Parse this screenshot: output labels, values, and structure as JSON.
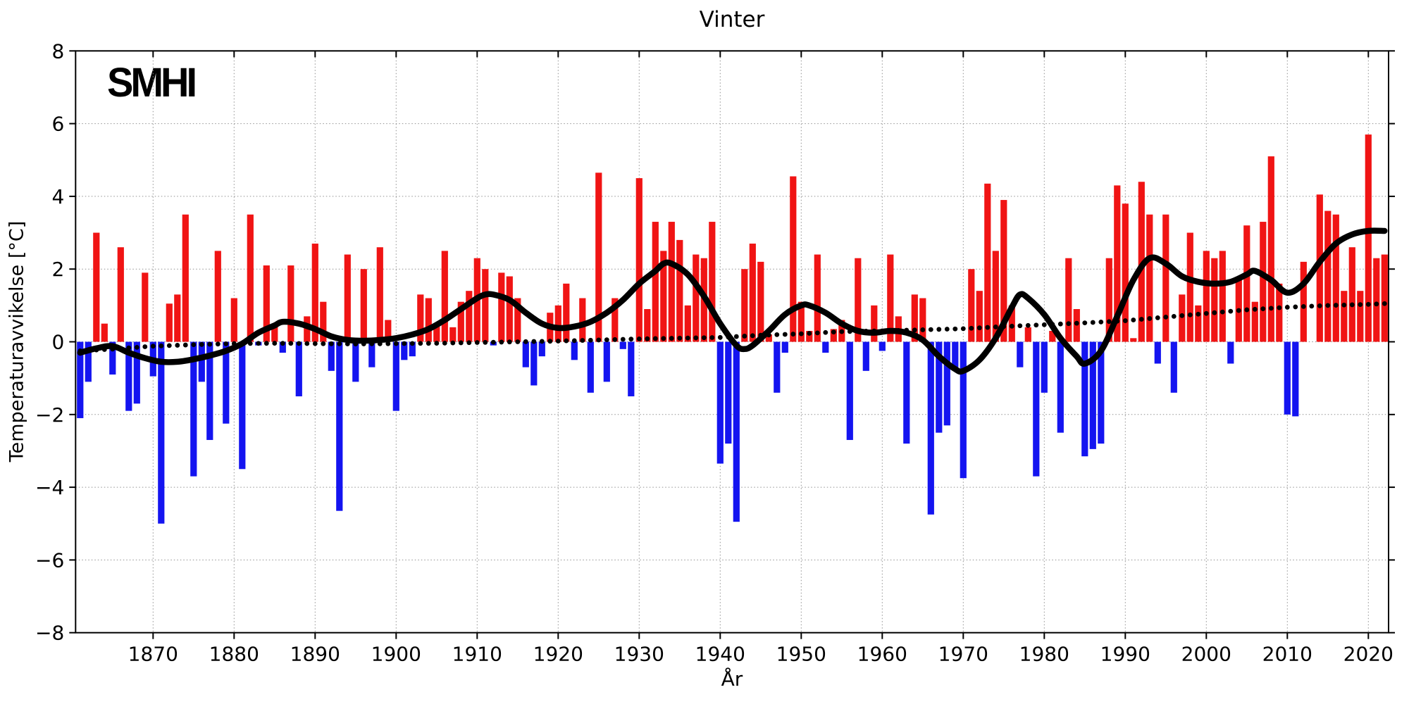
{
  "chart_data": {
    "type": "bar",
    "title": "Vinter",
    "xlabel": "År",
    "ylabel": "Temperaturavvikelse [°C]",
    "logo_text": "SMHI",
    "xlim": [
      1860.4,
      2022.6
    ],
    "ylim": [
      -8,
      8
    ],
    "x_ticks": [
      1870,
      1880,
      1890,
      1900,
      1910,
      1920,
      1930,
      1940,
      1950,
      1960,
      1970,
      1980,
      1990,
      2000,
      2010,
      2020
    ],
    "y_ticks": [
      -8,
      -6,
      -4,
      -2,
      0,
      2,
      4,
      6,
      8
    ],
    "grid": true,
    "legend": "none",
    "colors": {
      "positive": "#f01414",
      "negative": "#1414f0",
      "trend": "#000000",
      "reference_dots": "#000000",
      "gridline": "#909090",
      "frame": "#000000"
    },
    "bars": {
      "start_year": 1861,
      "end_year": 2022,
      "values": [
        -2.1,
        -1.1,
        3.0,
        0.5,
        -0.9,
        2.6,
        -1.9,
        -1.7,
        1.9,
        -0.95,
        -5.0,
        1.05,
        1.3,
        3.5,
        -3.7,
        -1.1,
        -2.7,
        2.5,
        -2.25,
        1.2,
        -3.5,
        3.5,
        -0.1,
        2.1,
        0.5,
        -0.3,
        2.1,
        -1.5,
        0.7,
        2.7,
        1.1,
        -0.8,
        -4.65,
        2.4,
        -1.1,
        2.0,
        -0.7,
        2.6,
        0.6,
        -1.9,
        -0.5,
        -0.4,
        1.3,
        1.2,
        0.5,
        2.5,
        0.4,
        1.1,
        1.4,
        2.3,
        2.0,
        -0.1,
        1.9,
        1.8,
        1.2,
        -0.7,
        -1.2,
        -0.4,
        0.8,
        1.0,
        1.6,
        -0.5,
        1.2,
        -1.4,
        4.65,
        -1.1,
        1.2,
        -0.2,
        -1.5,
        4.5,
        0.9,
        3.3,
        2.5,
        3.3,
        2.8,
        1.0,
        2.4,
        2.3,
        3.3,
        -3.35,
        -2.8,
        -4.95,
        2.0,
        2.7,
        2.2,
        0.2,
        -1.4,
        -0.3,
        4.55,
        1.1,
        0.3,
        2.4,
        -0.3,
        0.35,
        0.6,
        -2.7,
        2.3,
        -0.8,
        1.0,
        -0.25,
        2.4,
        0.7,
        -2.8,
        1.3,
        1.2,
        -4.75,
        -2.5,
        -2.3,
        -0.7,
        -3.75,
        2.0,
        1.4,
        4.35,
        2.5,
        3.9,
        1.0,
        -0.7,
        0.4,
        -3.7,
        -1.4,
        0.3,
        -2.5,
        2.3,
        0.9,
        -3.15,
        -2.95,
        -2.8,
        2.3,
        4.3,
        3.8,
        0.1,
        4.4,
        3.5,
        -0.6,
        3.5,
        -1.4,
        1.3,
        3.0,
        1.0,
        2.5,
        2.3,
        2.5,
        -0.6,
        1.7,
        3.2,
        1.1,
        3.3,
        5.1,
        1.6,
        -2.0,
        -2.05,
        2.2,
        0.0,
        4.05,
        3.6,
        3.5,
        1.4,
        2.6,
        1.4,
        5.7,
        2.3,
        2.4
      ]
    },
    "smooth_trend": {
      "points": [
        [
          1861,
          -0.3
        ],
        [
          1863,
          -0.18
        ],
        [
          1865,
          -0.12
        ],
        [
          1867,
          -0.3
        ],
        [
          1869,
          -0.45
        ],
        [
          1871,
          -0.55
        ],
        [
          1873,
          -0.55
        ],
        [
          1875,
          -0.48
        ],
        [
          1877,
          -0.38
        ],
        [
          1879,
          -0.25
        ],
        [
          1881,
          -0.05
        ],
        [
          1883,
          0.25
        ],
        [
          1885,
          0.45
        ],
        [
          1886,
          0.55
        ],
        [
          1888,
          0.5
        ],
        [
          1890,
          0.35
        ],
        [
          1892,
          0.15
        ],
        [
          1894,
          0.05
        ],
        [
          1896,
          0.03
        ],
        [
          1898,
          0.05
        ],
        [
          1900,
          0.1
        ],
        [
          1902,
          0.2
        ],
        [
          1904,
          0.35
        ],
        [
          1906,
          0.6
        ],
        [
          1908,
          0.9
        ],
        [
          1910,
          1.2
        ],
        [
          1911,
          1.3
        ],
        [
          1912,
          1.3
        ],
        [
          1914,
          1.15
        ],
        [
          1916,
          0.8
        ],
        [
          1918,
          0.5
        ],
        [
          1920,
          0.38
        ],
        [
          1922,
          0.42
        ],
        [
          1924,
          0.55
        ],
        [
          1926,
          0.8
        ],
        [
          1928,
          1.15
        ],
        [
          1930,
          1.6
        ],
        [
          1932,
          1.95
        ],
        [
          1933,
          2.15
        ],
        [
          1934,
          2.15
        ],
        [
          1936,
          1.85
        ],
        [
          1938,
          1.25
        ],
        [
          1940,
          0.5
        ],
        [
          1942,
          -0.1
        ],
        [
          1943,
          -0.2
        ],
        [
          1944,
          -0.1
        ],
        [
          1946,
          0.3
        ],
        [
          1948,
          0.75
        ],
        [
          1950,
          1.0
        ],
        [
          1951,
          1.0
        ],
        [
          1953,
          0.8
        ],
        [
          1955,
          0.5
        ],
        [
          1957,
          0.3
        ],
        [
          1959,
          0.25
        ],
        [
          1961,
          0.3
        ],
        [
          1963,
          0.25
        ],
        [
          1965,
          0.05
        ],
        [
          1967,
          -0.4
        ],
        [
          1969,
          -0.75
        ],
        [
          1970,
          -0.8
        ],
        [
          1972,
          -0.5
        ],
        [
          1974,
          0.1
        ],
        [
          1976,
          0.95
        ],
        [
          1977,
          1.3
        ],
        [
          1978,
          1.2
        ],
        [
          1980,
          0.75
        ],
        [
          1982,
          0.1
        ],
        [
          1984,
          -0.4
        ],
        [
          1985,
          -0.6
        ],
        [
          1987,
          -0.25
        ],
        [
          1989,
          0.7
        ],
        [
          1991,
          1.7
        ],
        [
          1993,
          2.3
        ],
        [
          1995,
          2.15
        ],
        [
          1997,
          1.8
        ],
        [
          1999,
          1.65
        ],
        [
          2001,
          1.6
        ],
        [
          2003,
          1.65
        ],
        [
          2005,
          1.85
        ],
        [
          2006,
          1.95
        ],
        [
          2008,
          1.7
        ],
        [
          2010,
          1.35
        ],
        [
          2012,
          1.6
        ],
        [
          2014,
          2.2
        ],
        [
          2016,
          2.7
        ],
        [
          2018,
          2.95
        ],
        [
          2020,
          3.05
        ],
        [
          2022,
          3.05
        ]
      ]
    },
    "dotted_reference": {
      "points": [
        [
          1861,
          -0.25
        ],
        [
          1865,
          -0.2
        ],
        [
          1870,
          -0.12
        ],
        [
          1875,
          -0.08
        ],
        [
          1880,
          -0.05
        ],
        [
          1885,
          -0.04
        ],
        [
          1890,
          -0.05
        ],
        [
          1895,
          -0.06
        ],
        [
          1900,
          -0.05
        ],
        [
          1905,
          -0.04
        ],
        [
          1910,
          -0.02
        ],
        [
          1915,
          0.0
        ],
        [
          1920,
          0.02
        ],
        [
          1925,
          0.05
        ],
        [
          1930,
          0.08
        ],
        [
          1935,
          0.1
        ],
        [
          1940,
          0.12
        ],
        [
          1945,
          0.18
        ],
        [
          1950,
          0.22
        ],
        [
          1955,
          0.28
        ],
        [
          1960,
          0.3
        ],
        [
          1965,
          0.33
        ],
        [
          1970,
          0.36
        ],
        [
          1975,
          0.42
        ],
        [
          1980,
          0.47
        ],
        [
          1985,
          0.52
        ],
        [
          1990,
          0.58
        ],
        [
          1995,
          0.68
        ],
        [
          2000,
          0.78
        ],
        [
          2005,
          0.88
        ],
        [
          2010,
          0.95
        ],
        [
          2015,
          1.0
        ],
        [
          2020,
          1.03
        ],
        [
          2022,
          1.05
        ]
      ]
    }
  }
}
